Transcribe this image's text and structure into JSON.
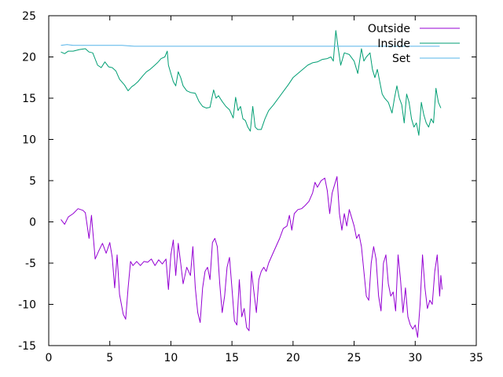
{
  "chart_data": {
    "type": "line",
    "title": "",
    "xlabel": "",
    "ylabel": "",
    "xlim": [
      0,
      35
    ],
    "ylim": [
      -15,
      25
    ],
    "xticks": [
      0,
      5,
      10,
      15,
      20,
      25,
      30,
      35
    ],
    "yticks": [
      -15,
      -10,
      -5,
      0,
      5,
      10,
      15,
      20,
      25
    ],
    "grid": false,
    "legend_position": "top-right",
    "series": [
      {
        "name": "Outside",
        "color": "#9400d3",
        "points": [
          [
            1.0,
            0.3
          ],
          [
            1.3,
            -0.3
          ],
          [
            1.6,
            0.6
          ],
          [
            2.0,
            1.0
          ],
          [
            2.4,
            1.6
          ],
          [
            2.8,
            1.4
          ],
          [
            3.0,
            1.1
          ],
          [
            3.3,
            -2.0
          ],
          [
            3.5,
            0.8
          ],
          [
            3.8,
            -4.5
          ],
          [
            4.1,
            -3.5
          ],
          [
            4.4,
            -2.6
          ],
          [
            4.7,
            -3.8
          ],
          [
            5.0,
            -2.5
          ],
          [
            5.2,
            -4.3
          ],
          [
            5.4,
            -8.0
          ],
          [
            5.6,
            -4.0
          ],
          [
            5.8,
            -8.8
          ],
          [
            6.1,
            -11.2
          ],
          [
            6.3,
            -11.8
          ],
          [
            6.5,
            -8.0
          ],
          [
            6.7,
            -4.8
          ],
          [
            6.9,
            -5.3
          ],
          [
            7.2,
            -4.8
          ],
          [
            7.5,
            -5.3
          ],
          [
            7.8,
            -4.8
          ],
          [
            8.1,
            -4.9
          ],
          [
            8.4,
            -4.5
          ],
          [
            8.7,
            -5.3
          ],
          [
            9.0,
            -4.6
          ],
          [
            9.3,
            -5.1
          ],
          [
            9.6,
            -4.5
          ],
          [
            9.8,
            -8.2
          ],
          [
            10.0,
            -4.0
          ],
          [
            10.2,
            -2.2
          ],
          [
            10.4,
            -6.5
          ],
          [
            10.6,
            -2.6
          ],
          [
            10.8,
            -5.0
          ],
          [
            11.0,
            -7.5
          ],
          [
            11.3,
            -5.5
          ],
          [
            11.6,
            -6.5
          ],
          [
            11.8,
            -3.0
          ],
          [
            12.0,
            -8.0
          ],
          [
            12.2,
            -11.0
          ],
          [
            12.4,
            -12.2
          ],
          [
            12.6,
            -8.0
          ],
          [
            12.8,
            -6.0
          ],
          [
            13.0,
            -5.5
          ],
          [
            13.2,
            -7.0
          ],
          [
            13.4,
            -2.5
          ],
          [
            13.6,
            -2.0
          ],
          [
            13.8,
            -3.0
          ],
          [
            14.0,
            -7.5
          ],
          [
            14.2,
            -11.0
          ],
          [
            14.4,
            -9.0
          ],
          [
            14.6,
            -5.5
          ],
          [
            14.8,
            -4.3
          ],
          [
            15.0,
            -8.0
          ],
          [
            15.2,
            -12.0
          ],
          [
            15.4,
            -12.5
          ],
          [
            15.6,
            -7.0
          ],
          [
            15.8,
            -11.5
          ],
          [
            16.0,
            -10.5
          ],
          [
            16.2,
            -12.8
          ],
          [
            16.4,
            -13.2
          ],
          [
            16.6,
            -6.0
          ],
          [
            16.8,
            -8.5
          ],
          [
            17.0,
            -11.0
          ],
          [
            17.2,
            -7.0
          ],
          [
            17.4,
            -6.0
          ],
          [
            17.6,
            -5.5
          ],
          [
            17.8,
            -6.0
          ],
          [
            18.0,
            -5.0
          ],
          [
            18.3,
            -4.0
          ],
          [
            18.6,
            -3.0
          ],
          [
            18.9,
            -2.0
          ],
          [
            19.2,
            -0.8
          ],
          [
            19.5,
            -0.5
          ],
          [
            19.7,
            0.8
          ],
          [
            19.9,
            -1.0
          ],
          [
            20.1,
            1.0
          ],
          [
            20.4,
            1.5
          ],
          [
            20.7,
            1.6
          ],
          [
            21.0,
            2.0
          ],
          [
            21.3,
            2.5
          ],
          [
            21.6,
            3.5
          ],
          [
            21.8,
            4.8
          ],
          [
            22.0,
            4.2
          ],
          [
            22.3,
            5.0
          ],
          [
            22.6,
            5.3
          ],
          [
            22.8,
            3.8
          ],
          [
            23.0,
            1.0
          ],
          [
            23.2,
            3.5
          ],
          [
            23.4,
            4.5
          ],
          [
            23.6,
            5.5
          ],
          [
            23.8,
            1.0
          ],
          [
            24.0,
            -1.0
          ],
          [
            24.2,
            1.0
          ],
          [
            24.4,
            -0.5
          ],
          [
            24.6,
            1.5
          ],
          [
            24.8,
            0.5
          ],
          [
            25.0,
            -0.5
          ],
          [
            25.2,
            -2.0
          ],
          [
            25.4,
            -1.5
          ],
          [
            25.6,
            -3.0
          ],
          [
            25.8,
            -6.0
          ],
          [
            26.0,
            -9.0
          ],
          [
            26.2,
            -9.5
          ],
          [
            26.4,
            -5.0
          ],
          [
            26.6,
            -3.0
          ],
          [
            26.8,
            -4.5
          ],
          [
            27.0,
            -9.0
          ],
          [
            27.2,
            -10.8
          ],
          [
            27.4,
            -5.0
          ],
          [
            27.6,
            -4.0
          ],
          [
            27.8,
            -7.5
          ],
          [
            28.0,
            -9.0
          ],
          [
            28.2,
            -8.5
          ],
          [
            28.4,
            -10.8
          ],
          [
            28.6,
            -4.0
          ],
          [
            28.8,
            -7.0
          ],
          [
            29.0,
            -11.0
          ],
          [
            29.2,
            -8.0
          ],
          [
            29.4,
            -11.5
          ],
          [
            29.6,
            -12.5
          ],
          [
            29.8,
            -13.0
          ],
          [
            30.0,
            -12.5
          ],
          [
            30.2,
            -14.0
          ],
          [
            30.4,
            -10.0
          ],
          [
            30.6,
            -4.0
          ],
          [
            30.8,
            -8.0
          ],
          [
            31.0,
            -10.5
          ],
          [
            31.2,
            -9.5
          ],
          [
            31.4,
            -10.0
          ],
          [
            31.6,
            -6.0
          ],
          [
            31.8,
            -4.0
          ],
          [
            32.0,
            -9.0
          ],
          [
            32.1,
            -6.5
          ],
          [
            32.2,
            -8.2
          ]
        ]
      },
      {
        "name": "Inside",
        "color": "#009e73",
        "points": [
          [
            1.0,
            20.6
          ],
          [
            1.3,
            20.4
          ],
          [
            1.6,
            20.7
          ],
          [
            2.0,
            20.7
          ],
          [
            2.5,
            20.9
          ],
          [
            3.0,
            21.0
          ],
          [
            3.3,
            20.6
          ],
          [
            3.6,
            20.5
          ],
          [
            4.0,
            19.0
          ],
          [
            4.3,
            18.7
          ],
          [
            4.6,
            19.4
          ],
          [
            4.9,
            18.8
          ],
          [
            5.2,
            18.7
          ],
          [
            5.5,
            18.3
          ],
          [
            5.8,
            17.3
          ],
          [
            6.2,
            16.6
          ],
          [
            6.5,
            15.9
          ],
          [
            6.8,
            16.4
          ],
          [
            7.0,
            16.6
          ],
          [
            7.3,
            17.0
          ],
          [
            7.7,
            17.7
          ],
          [
            8.0,
            18.2
          ],
          [
            8.3,
            18.5
          ],
          [
            8.6,
            18.9
          ],
          [
            8.9,
            19.3
          ],
          [
            9.2,
            19.8
          ],
          [
            9.5,
            20.0
          ],
          [
            9.7,
            20.7
          ],
          [
            9.8,
            19.0
          ],
          [
            10.0,
            18.0
          ],
          [
            10.2,
            17.0
          ],
          [
            10.4,
            16.5
          ],
          [
            10.6,
            18.2
          ],
          [
            10.8,
            17.5
          ],
          [
            11.0,
            16.5
          ],
          [
            11.3,
            15.9
          ],
          [
            11.6,
            15.7
          ],
          [
            12.0,
            15.6
          ],
          [
            12.3,
            14.6
          ],
          [
            12.6,
            14.0
          ],
          [
            12.9,
            13.8
          ],
          [
            13.2,
            13.9
          ],
          [
            13.5,
            16.0
          ],
          [
            13.7,
            15.0
          ],
          [
            13.9,
            15.3
          ],
          [
            14.2,
            14.6
          ],
          [
            14.5,
            14.0
          ],
          [
            14.8,
            13.6
          ],
          [
            15.1,
            12.6
          ],
          [
            15.3,
            15.1
          ],
          [
            15.5,
            13.5
          ],
          [
            15.7,
            14.0
          ],
          [
            15.9,
            12.5
          ],
          [
            16.1,
            12.3
          ],
          [
            16.3,
            11.5
          ],
          [
            16.5,
            11.0
          ],
          [
            16.7,
            14.0
          ],
          [
            16.9,
            11.5
          ],
          [
            17.1,
            11.2
          ],
          [
            17.4,
            11.2
          ],
          [
            17.7,
            12.5
          ],
          [
            18.0,
            13.5
          ],
          [
            18.4,
            14.2
          ],
          [
            18.8,
            15.0
          ],
          [
            19.2,
            15.8
          ],
          [
            19.6,
            16.6
          ],
          [
            20.0,
            17.5
          ],
          [
            20.4,
            18.0
          ],
          [
            20.8,
            18.5
          ],
          [
            21.2,
            19.0
          ],
          [
            21.6,
            19.3
          ],
          [
            22.0,
            19.4
          ],
          [
            22.4,
            19.7
          ],
          [
            22.8,
            19.8
          ],
          [
            23.1,
            20.0
          ],
          [
            23.3,
            19.5
          ],
          [
            23.5,
            23.2
          ],
          [
            23.7,
            21.0
          ],
          [
            23.9,
            19.0
          ],
          [
            24.2,
            20.5
          ],
          [
            24.6,
            20.3
          ],
          [
            25.0,
            19.5
          ],
          [
            25.3,
            18.0
          ],
          [
            25.6,
            21.0
          ],
          [
            25.8,
            19.5
          ],
          [
            26.0,
            20.0
          ],
          [
            26.3,
            20.5
          ],
          [
            26.5,
            18.5
          ],
          [
            26.7,
            17.5
          ],
          [
            26.9,
            18.5
          ],
          [
            27.1,
            17.0
          ],
          [
            27.3,
            15.5
          ],
          [
            27.5,
            15.0
          ],
          [
            27.8,
            14.5
          ],
          [
            28.1,
            13.2
          ],
          [
            28.3,
            15.0
          ],
          [
            28.5,
            16.5
          ],
          [
            28.7,
            15.0
          ],
          [
            28.9,
            14.2
          ],
          [
            29.1,
            12.0
          ],
          [
            29.3,
            15.5
          ],
          [
            29.5,
            14.5
          ],
          [
            29.7,
            12.5
          ],
          [
            29.9,
            11.5
          ],
          [
            30.1,
            12.0
          ],
          [
            30.3,
            10.5
          ],
          [
            30.5,
            14.5
          ],
          [
            30.7,
            13.0
          ],
          [
            30.9,
            12.0
          ],
          [
            31.1,
            11.5
          ],
          [
            31.3,
            12.5
          ],
          [
            31.5,
            12.0
          ],
          [
            31.7,
            16.2
          ],
          [
            31.9,
            14.5
          ],
          [
            32.1,
            13.8
          ]
        ]
      },
      {
        "name": "Set",
        "color": "#56b4e9",
        "points": [
          [
            1.0,
            21.4
          ],
          [
            1.5,
            21.5
          ],
          [
            2.0,
            21.4
          ],
          [
            3.0,
            21.4
          ],
          [
            4.0,
            21.4
          ],
          [
            5.0,
            21.4
          ],
          [
            6.0,
            21.4
          ],
          [
            7.0,
            21.3
          ],
          [
            8.0,
            21.3
          ],
          [
            9.0,
            21.3
          ],
          [
            10.0,
            21.3
          ],
          [
            11.0,
            21.3
          ],
          [
            12.0,
            21.3
          ],
          [
            13.0,
            21.3
          ],
          [
            14.0,
            21.3
          ],
          [
            15.0,
            21.3
          ],
          [
            16.0,
            21.3
          ],
          [
            17.0,
            21.3
          ],
          [
            18.0,
            21.3
          ],
          [
            19.0,
            21.3
          ],
          [
            20.0,
            21.3
          ],
          [
            21.0,
            21.3
          ],
          [
            22.0,
            21.3
          ],
          [
            23.0,
            21.3
          ],
          [
            24.0,
            21.3
          ],
          [
            25.0,
            21.3
          ],
          [
            26.0,
            21.3
          ],
          [
            27.0,
            21.3
          ],
          [
            28.0,
            21.3
          ],
          [
            29.0,
            21.3
          ],
          [
            30.0,
            21.3
          ],
          [
            31.0,
            21.3
          ],
          [
            32.0,
            21.3
          ]
        ]
      }
    ]
  }
}
